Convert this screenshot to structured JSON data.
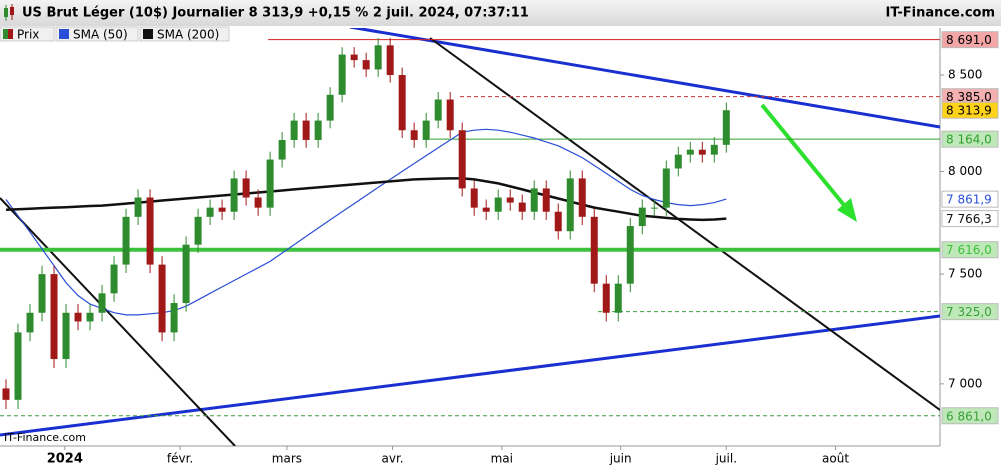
{
  "chart_data": {
    "type": "candlestick",
    "title": "US Brut Léger (10$) Journalier 8 313,9 +0,15 % 2 juil. 2024, 07:37:11",
    "brand": "IT-Finance.com",
    "watermark": "IT-Finance.com",
    "log_scale": true,
    "ylim": [
      6736,
      8755
    ],
    "yticks": [
      {
        "value": 8500,
        "label": "8 500"
      },
      {
        "value": 8000,
        "label": "8 000"
      },
      {
        "value": 7500,
        "label": "7 500"
      },
      {
        "value": 7000,
        "label": "7 000"
      }
    ],
    "xlim": [
      -0.5,
      77.8
    ],
    "xticks": [
      {
        "value": 4.9,
        "label": "2024"
      },
      {
        "value": 14.5,
        "label": "févr."
      },
      {
        "value": 23.4,
        "label": "mars"
      },
      {
        "value": 32.2,
        "label": "avr."
      },
      {
        "value": 41.3,
        "label": "mai"
      },
      {
        "value": 51.2,
        "label": "juin"
      },
      {
        "value": 60,
        "label": "juil."
      },
      {
        "value": 69.1,
        "label": "août"
      }
    ],
    "legend": [
      "Prix",
      "SMA (50)",
      "SMA (200)"
    ],
    "up_color": "#2e8b2e",
    "down_color": "#a01818",
    "open": [
      6980,
      6930,
      7230,
      7320,
      7500,
      7110,
      7320,
      7280,
      7320,
      7410,
      7545,
      7775,
      7870,
      7545,
      7230,
      7365,
      7640,
      7775,
      7820,
      7800,
      7965,
      7870,
      7820,
      8060,
      8160,
      8260,
      8160,
      8260,
      8395,
      8610,
      8580,
      8530,
      8660,
      8500,
      8210,
      8160,
      8260,
      8370,
      8210,
      7915,
      7820,
      7800,
      7870,
      7845,
      7800,
      7915,
      7800,
      7705,
      7965,
      7775,
      7455,
      7320,
      7455,
      7730,
      7820,
      7820,
      8015,
      8085,
      8110,
      8085,
      8135
    ],
    "high": [
      7020,
      7270,
      7360,
      7540,
      7540,
      7360,
      7360,
      7360,
      7450,
      7585,
      7815,
      7910,
      7910,
      7585,
      7405,
      7680,
      7815,
      7860,
      7860,
      8005,
      8005,
      7910,
      8100,
      8200,
      8300,
      8300,
      8300,
      8435,
      8650,
      8650,
      8620,
      8700,
      8700,
      8540,
      8250,
      8300,
      8410,
      8410,
      8250,
      7955,
      7860,
      7910,
      7910,
      7885,
      7955,
      7955,
      7840,
      8005,
      8005,
      7815,
      7495,
      7495,
      7770,
      7860,
      7860,
      8055,
      8125,
      8150,
      8150,
      8175,
      8354
    ],
    "low": [
      6890,
      6890,
      7190,
      7280,
      7070,
      7070,
      7240,
      7240,
      7280,
      7370,
      7505,
      7735,
      7505,
      7190,
      7190,
      7325,
      7600,
      7735,
      7760,
      7760,
      7830,
      7780,
      7780,
      8020,
      8120,
      8120,
      8120,
      8220,
      8355,
      8540,
      8490,
      8490,
      8460,
      8170,
      8120,
      8120,
      8220,
      8170,
      7875,
      7780,
      7760,
      7760,
      7805,
      7760,
      7760,
      7760,
      7665,
      7665,
      7735,
      7415,
      7280,
      7280,
      7415,
      7690,
      7780,
      7780,
      7975,
      8045,
      8045,
      8045,
      8095
    ],
    "close": [
      6930,
      7230,
      7320,
      7500,
      7110,
      7320,
      7280,
      7320,
      7410,
      7545,
      7775,
      7870,
      7545,
      7230,
      7365,
      7640,
      7775,
      7820,
      7800,
      7965,
      7870,
      7820,
      8060,
      8160,
      8260,
      8160,
      8260,
      8395,
      8610,
      8580,
      8530,
      8660,
      8500,
      8210,
      8160,
      8260,
      8370,
      8210,
      7915,
      7820,
      7800,
      7870,
      7845,
      7800,
      7915,
      7800,
      7705,
      7965,
      7775,
      7455,
      7320,
      7455,
      7730,
      7820,
      7820,
      8015,
      8085,
      8110,
      8085,
      8135,
      8313.9
    ],
    "series": [
      {
        "name": "SMA (50)",
        "color": "#2a4fd6",
        "values": [
          7860,
          7780,
          7700,
          7620,
          7540,
          7460,
          7400,
          7360,
          7340,
          7320,
          7310,
          7310,
          7315,
          7320,
          7330,
          7350,
          7380,
          7410,
          7440,
          7470,
          7500,
          7530,
          7560,
          7600,
          7640,
          7680,
          7720,
          7760,
          7800,
          7840,
          7880,
          7920,
          7960,
          8000,
          8040,
          8080,
          8120,
          8160,
          8200,
          8210,
          8215,
          8210,
          8200,
          8185,
          8170,
          8150,
          8130,
          8100,
          8070,
          8030,
          7990,
          7950,
          7910,
          7880,
          7860,
          7845,
          7835,
          7830,
          7835,
          7845,
          7861.9
        ]
      },
      {
        "name": "SMA (200)",
        "color": "#111111",
        "values": [
          7810,
          7812,
          7815,
          7818,
          7820,
          7822,
          7825,
          7828,
          7830,
          7835,
          7840,
          7845,
          7850,
          7855,
          7860,
          7865,
          7870,
          7875,
          7880,
          7885,
          7890,
          7895,
          7900,
          7905,
          7910,
          7915,
          7920,
          7925,
          7930,
          7935,
          7940,
          7945,
          7950,
          7955,
          7960,
          7962,
          7964,
          7965,
          7965,
          7960,
          7950,
          7940,
          7925,
          7910,
          7895,
          7880,
          7865,
          7850,
          7835,
          7820,
          7810,
          7800,
          7790,
          7780,
          7775,
          7770,
          7765,
          7762,
          7760,
          7762,
          7766.3
        ]
      }
    ],
    "levels": [
      {
        "value": 8691,
        "label": "8 691,0",
        "color": "#d42020",
        "box": "#f4a6a6",
        "style": "solid"
      },
      {
        "value": 8385,
        "label": "8 385,0",
        "color": "#c03030",
        "box": "#f4b0b0",
        "style": "dashed"
      },
      {
        "value": 8313.9,
        "label": "8 313,9",
        "color": "#000000",
        "box": "#ffd21a",
        "style": "none"
      },
      {
        "value": 8164,
        "label": "8 164,0",
        "color": "#2f9e2f",
        "box": "#bfe8b8",
        "style": "solid"
      },
      {
        "value": 7861.9,
        "label": "7 861,9",
        "color": "#2a4fd6",
        "box": "#ffffff",
        "style": "none"
      },
      {
        "value": 7766.3,
        "label": "7 766,3",
        "color": "#111111",
        "box": "#ffffff",
        "style": "none"
      },
      {
        "value": 7616,
        "label": "7 616,0",
        "color": "#3cc23c",
        "box": "#bfe8b8",
        "style": "thick"
      },
      {
        "value": 7325,
        "label": "7 325,0",
        "color": "#3a9e3a",
        "box": "#bfe8b8",
        "style": "dashed"
      },
      {
        "value": 6861,
        "label": "6 861,0",
        "color": "#3a9e3a",
        "box": "#bfe8b8",
        "style": "dashed"
      }
    ]
  }
}
